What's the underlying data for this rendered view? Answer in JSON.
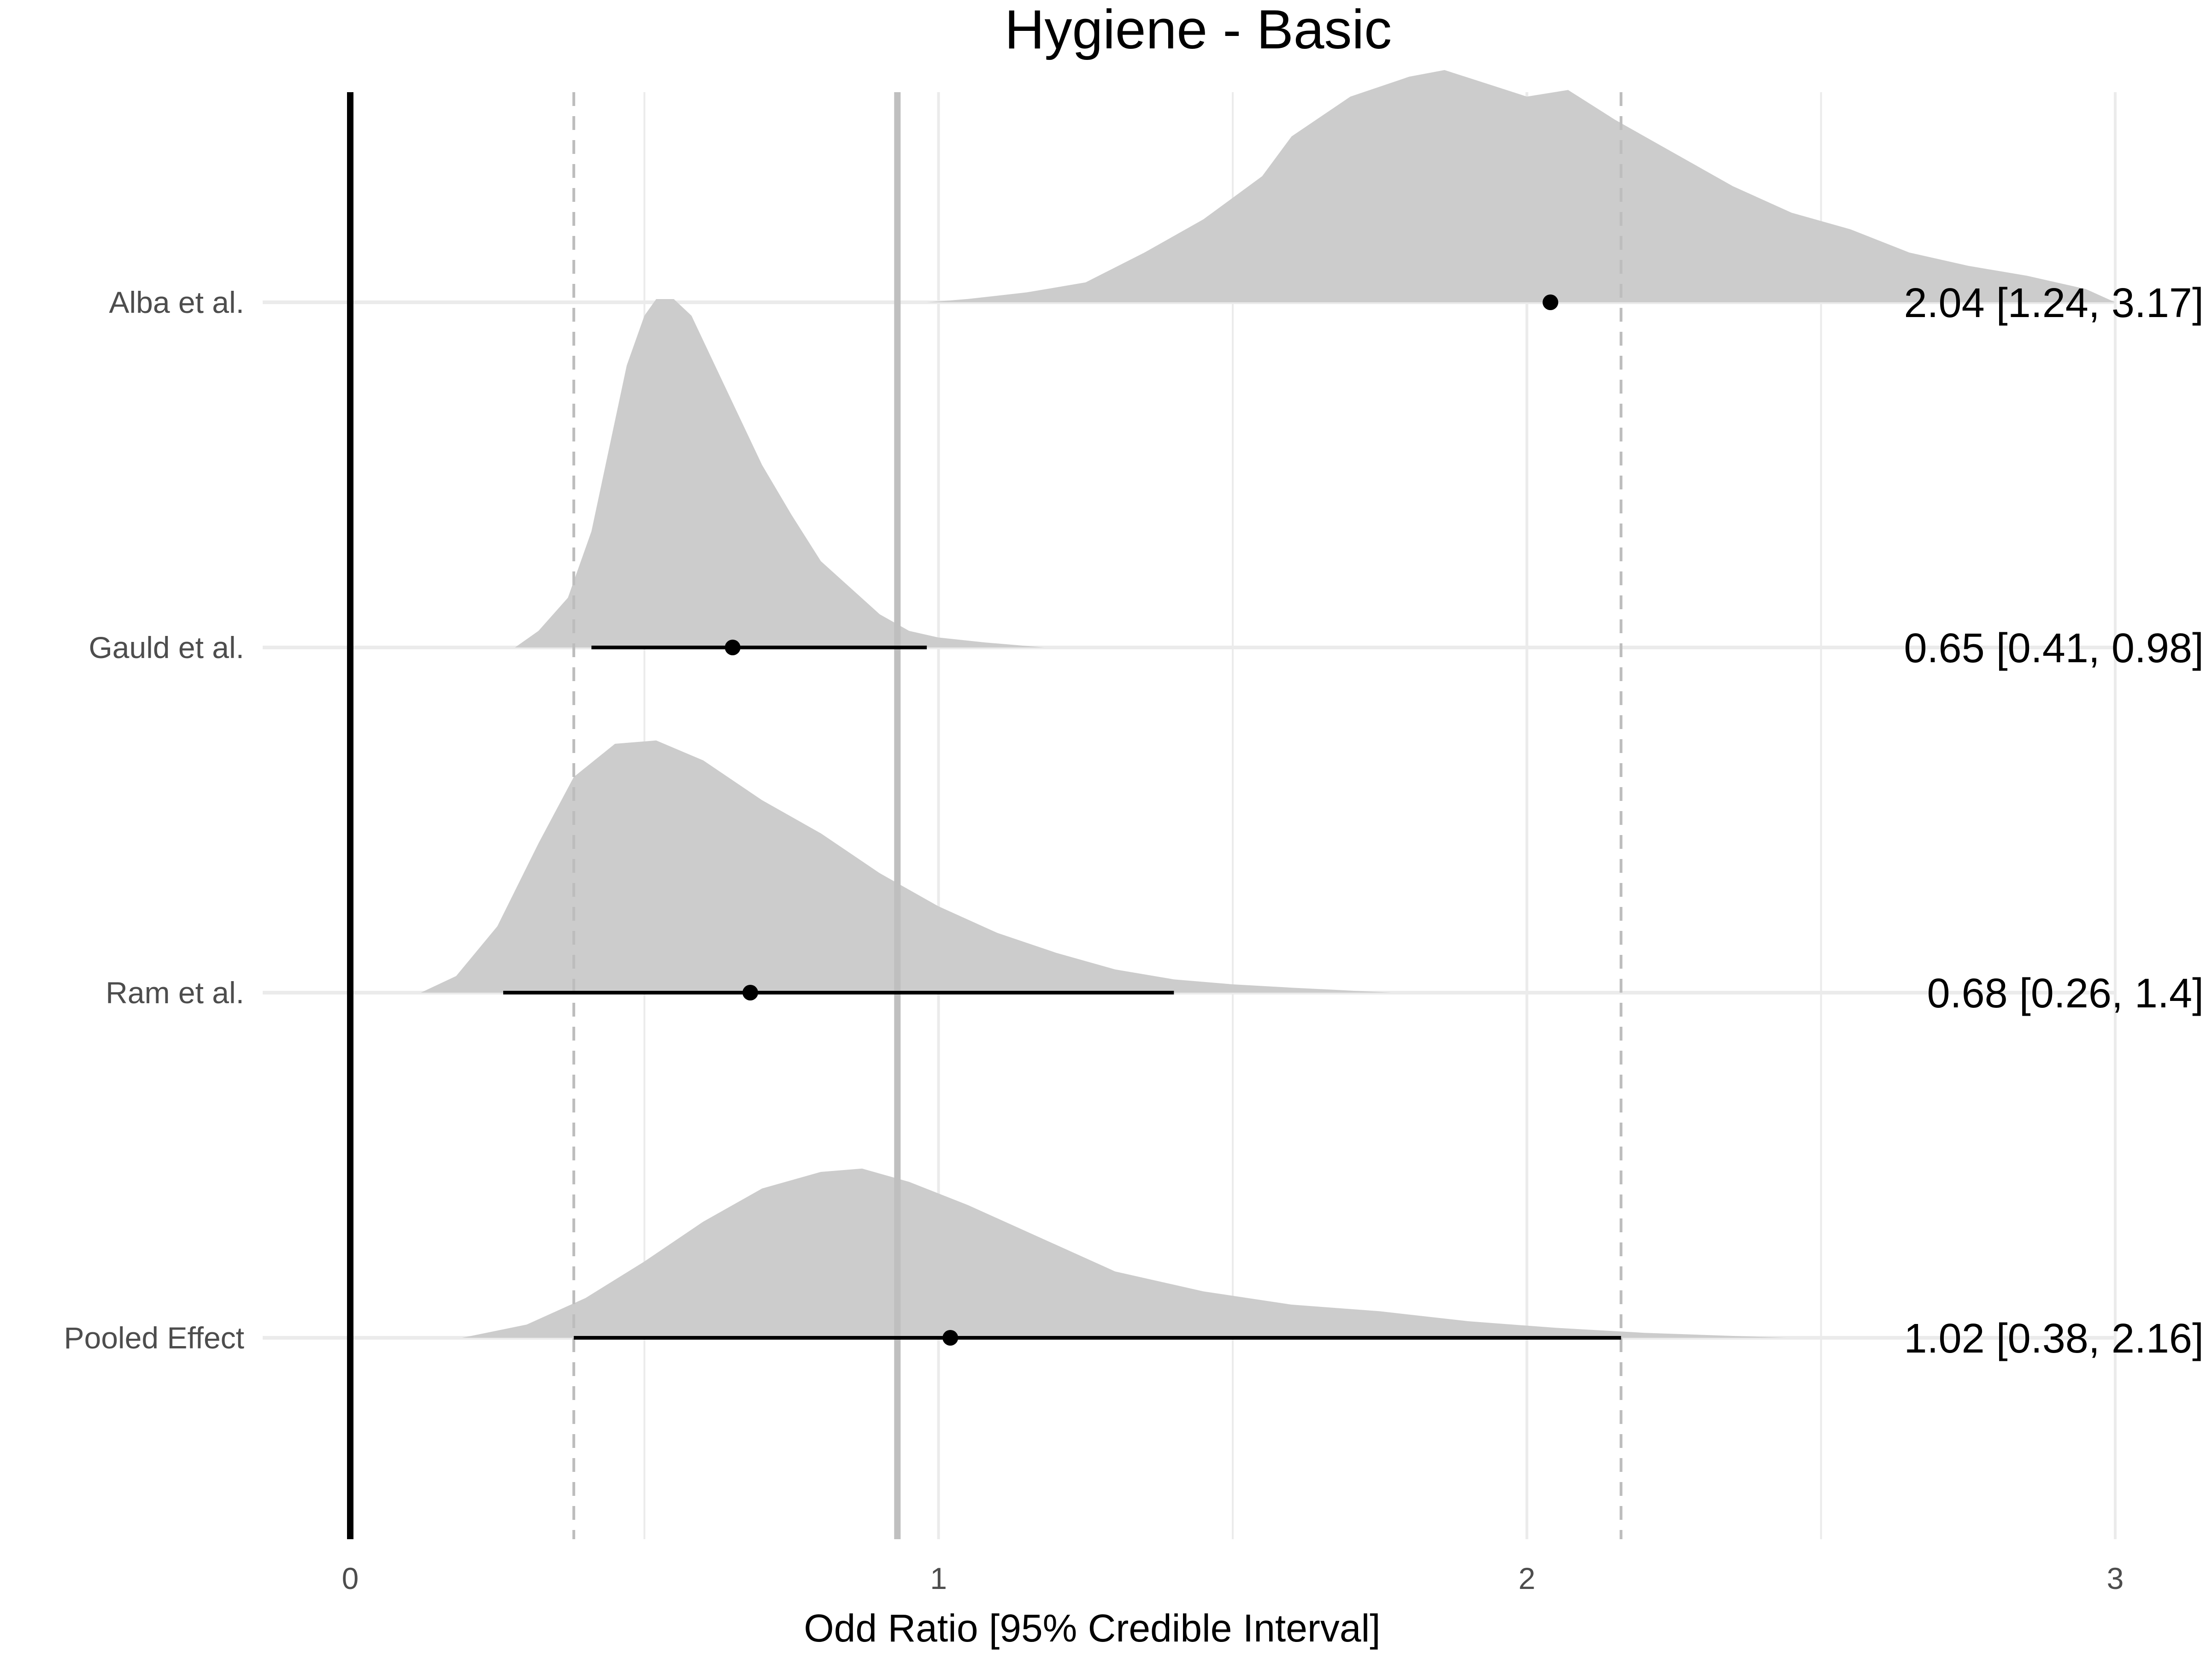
{
  "chart_data": {
    "type": "forest-density",
    "title": "Hygiene - Basic",
    "xlabel": "Odd Ratio [95% Credible Interval]",
    "ylabel": "",
    "xlim": [
      0,
      3
    ],
    "x_ticks": [
      "0",
      "1",
      "2",
      "3"
    ],
    "grid": true,
    "reference_line_x": 0,
    "pooled_median_line_x": 0.93,
    "pooled_ci_lines_x": [
      0.38,
      2.16
    ],
    "studies": [
      {
        "label": "Alba et al.",
        "estimate": 2.04,
        "lower": 1.24,
        "upper": 3.17,
        "text": "2.04 [1.24, 3.17]",
        "show_interval": false,
        "density": [
          [
            0.98,
            0.0
          ],
          [
            1.05,
            0.01
          ],
          [
            1.15,
            0.03
          ],
          [
            1.25,
            0.06
          ],
          [
            1.35,
            0.15
          ],
          [
            1.45,
            0.25
          ],
          [
            1.55,
            0.38
          ],
          [
            1.6,
            0.5
          ],
          [
            1.7,
            0.62
          ],
          [
            1.8,
            0.68
          ],
          [
            1.86,
            0.7
          ],
          [
            1.93,
            0.66
          ],
          [
            2.0,
            0.62
          ],
          [
            2.07,
            0.64
          ],
          [
            2.15,
            0.55
          ],
          [
            2.25,
            0.45
          ],
          [
            2.35,
            0.35
          ],
          [
            2.45,
            0.27
          ],
          [
            2.55,
            0.22
          ],
          [
            2.65,
            0.15
          ],
          [
            2.75,
            0.11
          ],
          [
            2.85,
            0.08
          ],
          [
            2.95,
            0.04
          ],
          [
            3.0,
            0.0
          ]
        ]
      },
      {
        "label": "Gauld et al.",
        "estimate": 0.65,
        "lower": 0.41,
        "upper": 0.98,
        "text": "0.65 [0.41, 0.98]",
        "show_interval": true,
        "density": [
          [
            0.28,
            0.0
          ],
          [
            0.32,
            0.05
          ],
          [
            0.37,
            0.15
          ],
          [
            0.41,
            0.35
          ],
          [
            0.44,
            0.6
          ],
          [
            0.47,
            0.85
          ],
          [
            0.5,
            1.0
          ],
          [
            0.52,
            1.05
          ],
          [
            0.55,
            1.05
          ],
          [
            0.58,
            1.0
          ],
          [
            0.62,
            0.85
          ],
          [
            0.66,
            0.7
          ],
          [
            0.7,
            0.55
          ],
          [
            0.75,
            0.4
          ],
          [
            0.8,
            0.26
          ],
          [
            0.85,
            0.18
          ],
          [
            0.9,
            0.1
          ],
          [
            0.95,
            0.05
          ],
          [
            1.0,
            0.03
          ],
          [
            1.08,
            0.015
          ],
          [
            1.18,
            0.0
          ]
        ]
      },
      {
        "label": "Ram et al.",
        "estimate": 0.68,
        "lower": 0.26,
        "upper": 1.4,
        "text": "0.68 [0.26, 1.4]",
        "show_interval": true,
        "density": [
          [
            0.12,
            0.0
          ],
          [
            0.18,
            0.05
          ],
          [
            0.25,
            0.2
          ],
          [
            0.32,
            0.45
          ],
          [
            0.38,
            0.65
          ],
          [
            0.45,
            0.75
          ],
          [
            0.52,
            0.76
          ],
          [
            0.6,
            0.7
          ],
          [
            0.7,
            0.58
          ],
          [
            0.8,
            0.48
          ],
          [
            0.9,
            0.36
          ],
          [
            1.0,
            0.26
          ],
          [
            1.1,
            0.18
          ],
          [
            1.2,
            0.12
          ],
          [
            1.3,
            0.07
          ],
          [
            1.4,
            0.04
          ],
          [
            1.5,
            0.025
          ],
          [
            1.6,
            0.015
          ],
          [
            1.77,
            0.0
          ]
        ]
      },
      {
        "label": "Pooled Effect",
        "estimate": 1.02,
        "lower": 0.38,
        "upper": 2.16,
        "text": "1.02 [0.38, 2.16]",
        "show_interval": true,
        "density": [
          [
            0.19,
            0.0
          ],
          [
            0.3,
            0.04
          ],
          [
            0.4,
            0.12
          ],
          [
            0.5,
            0.23
          ],
          [
            0.6,
            0.35
          ],
          [
            0.7,
            0.45
          ],
          [
            0.8,
            0.5
          ],
          [
            0.87,
            0.51
          ],
          [
            0.95,
            0.47
          ],
          [
            1.05,
            0.4
          ],
          [
            1.15,
            0.32
          ],
          [
            1.3,
            0.2
          ],
          [
            1.45,
            0.14
          ],
          [
            1.6,
            0.1
          ],
          [
            1.75,
            0.08
          ],
          [
            1.9,
            0.05
          ],
          [
            2.05,
            0.03
          ],
          [
            2.2,
            0.015
          ],
          [
            2.44,
            0.0
          ]
        ]
      }
    ]
  },
  "colors": {
    "density_fill": "#cccccc",
    "grid": "#ebebeb",
    "axis_line": "#000000",
    "median_line": "#bfbfbf",
    "ci_dashed": "#bdbdbd",
    "point": "#000000"
  }
}
